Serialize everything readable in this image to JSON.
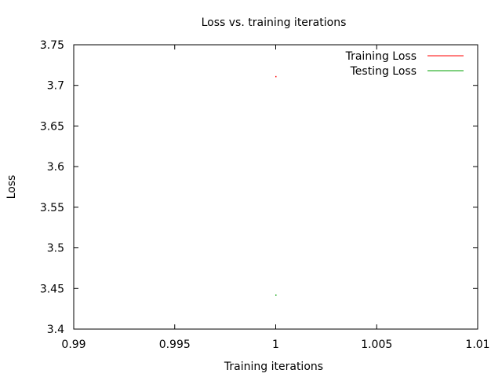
{
  "chart_data": {
    "type": "line",
    "title": "Loss vs. training iterations",
    "xlabel": "Training iterations",
    "ylabel": "Loss",
    "xlim": [
      0.99,
      1.01
    ],
    "ylim": [
      3.4,
      3.75
    ],
    "xticks": [
      0.99,
      0.995,
      1,
      1.005,
      1.01
    ],
    "xtick_labels": [
      "0.99",
      "0.995",
      "1",
      "1.005",
      "1.01"
    ],
    "yticks": [
      3.4,
      3.45,
      3.5,
      3.55,
      3.6,
      3.65,
      3.7,
      3.75
    ],
    "ytick_labels": [
      "3.4",
      "3.45",
      "3.5",
      "3.55",
      "3.6",
      "3.65",
      "3.7",
      "3.75"
    ],
    "grid": false,
    "legend_position": "top-right",
    "series": [
      {
        "name": "Training Loss",
        "color": "#ff0000",
        "x": [
          1
        ],
        "y": [
          3.711
        ]
      },
      {
        "name": "Testing Loss",
        "color": "#00a000",
        "x": [
          1
        ],
        "y": [
          3.442
        ]
      }
    ]
  }
}
